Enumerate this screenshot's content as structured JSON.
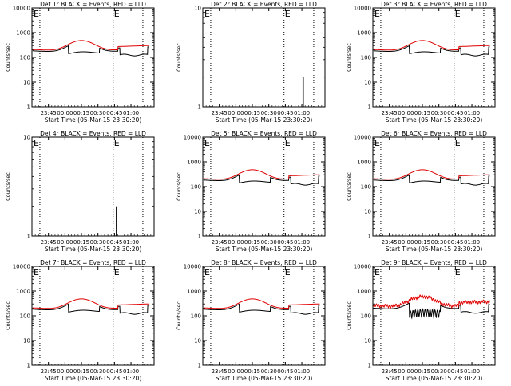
{
  "figure": {
    "x_tick_labels": [
      "23:45",
      "00:00",
      "00:15",
      "00:30",
      "00:45",
      "01:00"
    ],
    "y_axis_label": "Counts/sec",
    "x_axis_label": "Start Time (05-Mar-15 23:30:20)",
    "event_marker": "E",
    "colors": {
      "black_series": "#000000",
      "red_series": "#e00000",
      "axes": "#000000",
      "background": "#ffffff"
    }
  },
  "chart_data": [
    {
      "type": "line",
      "title": "Det 1r BLACK = Events, RED = LLD",
      "yscale": "log",
      "ylim": [
        1,
        10000
      ],
      "ytick_labels": [
        "1",
        "10",
        "100",
        "1000",
        "10000"
      ],
      "profile": "full"
    },
    {
      "type": "line",
      "title": "Det 2r BLACK = Events, RED = LLD",
      "yscale": "log",
      "ylim": [
        1,
        10
      ],
      "ytick_labels": [
        "1",
        "10"
      ],
      "profile": "spike"
    },
    {
      "type": "line",
      "title": "Det 3r BLACK = Events, RED = LLD",
      "yscale": "log",
      "ylim": [
        1,
        10000
      ],
      "ytick_labels": [
        "1",
        "10",
        "100",
        "1000",
        "10000"
      ],
      "profile": "full"
    },
    {
      "type": "line",
      "title": "Det 4r BLACK = Events, RED = LLD",
      "yscale": "log",
      "ylim": [
        1,
        10
      ],
      "ytick_labels": [
        "1",
        "10"
      ],
      "profile": "spike"
    },
    {
      "type": "line",
      "title": "Det 5r BLACK = Events, RED = LLD",
      "yscale": "log",
      "ylim": [
        1,
        10000
      ],
      "ytick_labels": [
        "1",
        "10",
        "100",
        "1000",
        "10000"
      ],
      "profile": "full"
    },
    {
      "type": "line",
      "title": "Det 6r BLACK = Events, RED = LLD",
      "yscale": "log",
      "ylim": [
        1,
        10000
      ],
      "ytick_labels": [
        "1",
        "10",
        "100",
        "1000",
        "10000"
      ],
      "profile": "full"
    },
    {
      "type": "line",
      "title": "Det 7r BLACK = Events, RED = LLD",
      "yscale": "log",
      "ylim": [
        1,
        10000
      ],
      "ytick_labels": [
        "1",
        "10",
        "100",
        "1000",
        "10000"
      ],
      "profile": "full"
    },
    {
      "type": "line",
      "title": "Det 8r BLACK = Events, RED = LLD",
      "yscale": "log",
      "ylim": [
        1,
        10000
      ],
      "ytick_labels": [
        "1",
        "10",
        "100",
        "1000",
        "10000"
      ],
      "profile": "full"
    },
    {
      "type": "line",
      "title": "Det 9r BLACK = Events, RED = LLD",
      "yscale": "log",
      "ylim": [
        1,
        10000
      ],
      "ytick_labels": [
        "1",
        "10",
        "100",
        "1000",
        "10000"
      ],
      "profile": "noisy"
    }
  ]
}
